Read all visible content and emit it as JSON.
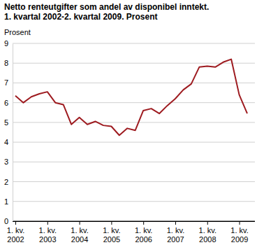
{
  "chart_data": {
    "type": "line",
    "title": "Netto renteutgifter som andel av disponibel inntekt.",
    "subtitle": "1. kvartal 2002-2. kvartal 2009. Prosent",
    "y_label": "Prosent",
    "categories": [
      "1. kv. 2002",
      null,
      null,
      null,
      "1. kv. 2003",
      null,
      null,
      null,
      "1. kv. 2004",
      null,
      null,
      null,
      "1. kv. 2005",
      null,
      null,
      null,
      "1. kv. 2006",
      null,
      null,
      null,
      "1. kv. 2007",
      null,
      null,
      null,
      "1. kv. 2008",
      null,
      null,
      null,
      "1. kv. 2009",
      null
    ],
    "values": [
      6.35,
      6.0,
      6.3,
      6.45,
      6.55,
      6.0,
      5.9,
      4.9,
      5.25,
      4.9,
      5.05,
      4.85,
      4.8,
      4.35,
      4.7,
      4.6,
      5.6,
      5.7,
      5.45,
      5.85,
      6.2,
      6.65,
      6.95,
      7.8,
      7.85,
      7.8,
      8.05,
      8.2,
      6.4,
      5.45
    ],
    "color": "#9e1b20",
    "ylim": [
      0,
      9
    ],
    "yticks": [
      0,
      1,
      2,
      3,
      4,
      5,
      6,
      7,
      8,
      9
    ],
    "grid": true
  }
}
